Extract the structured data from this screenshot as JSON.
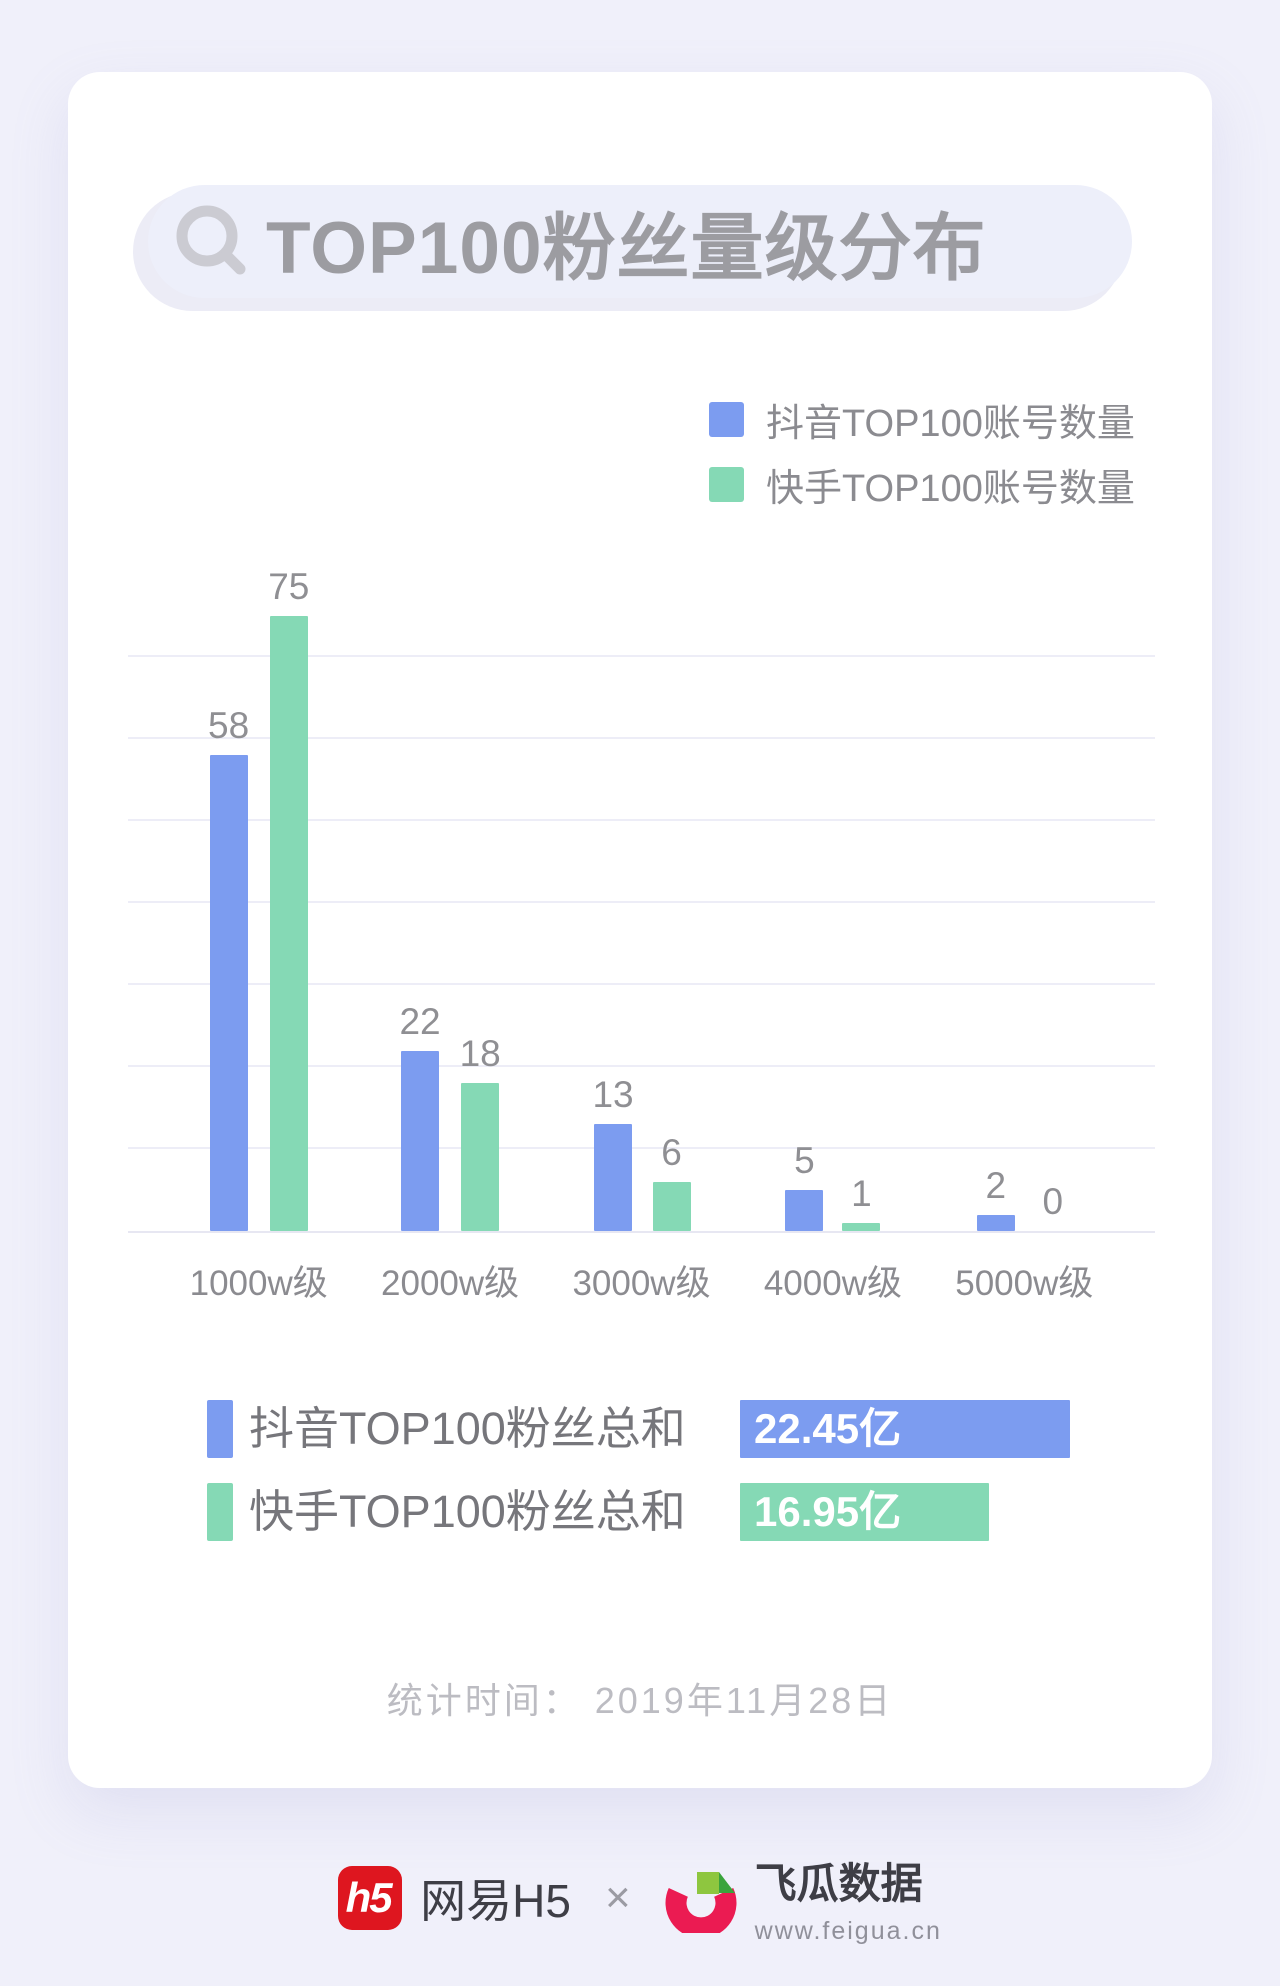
{
  "header": {
    "title": "TOP100粉丝量级分布"
  },
  "legend": [
    {
      "label": "抖音TOP100账号数量",
      "color": "#7c9cf0"
    },
    {
      "label": "快手TOP100账号数量",
      "color": "#85d9b5"
    }
  ],
  "chart_data": {
    "type": "bar",
    "title": "TOP100粉丝量级分布",
    "categories": [
      "1000w级",
      "2000w级",
      "3000w级",
      "4000w级",
      "5000w级"
    ],
    "series": [
      {
        "name": "抖音TOP100账号数量",
        "color": "#7c9cf0",
        "values": [
          58,
          22,
          13,
          5,
          2
        ]
      },
      {
        "name": "快手TOP100账号数量",
        "color": "#85d9b5",
        "values": [
          75,
          18,
          6,
          1,
          0
        ]
      }
    ],
    "xlabel": "",
    "ylabel": "",
    "ylim": [
      0,
      80
    ],
    "gridline_step": 10,
    "grid": true,
    "legend_position": "top-right",
    "data_labels": true
  },
  "summary": {
    "rows": [
      {
        "label": "抖音TOP100粉丝总和",
        "value": "22.45亿",
        "value_num": 22.45,
        "color": "#7c9cf0"
      },
      {
        "label": "快手TOP100粉丝总和",
        "value": "16.95亿",
        "value_num": 16.95,
        "color": "#85d9b5"
      }
    ]
  },
  "stat_time": "统计时间： 2019年11月28日",
  "footer": {
    "netease_logo_text": "h5",
    "netease_name": "网易H5",
    "separator": "×",
    "feigua_name": "飞瓜数据",
    "feigua_url": "www.feigua.cn"
  },
  "colors": {
    "page_bg": "#f0f0fa",
    "card_bg": "#ffffff",
    "pill_bg": "#edeffa",
    "title_gray": "#9c9ca1",
    "douyin_blue": "#7c9cf0",
    "kuaishou_green": "#85d9b5",
    "h5_red": "#de161f",
    "feigua_red": "#eb1b52",
    "feigua_green_light": "#8ec63f",
    "feigua_green_dark": "#3aa43c"
  }
}
